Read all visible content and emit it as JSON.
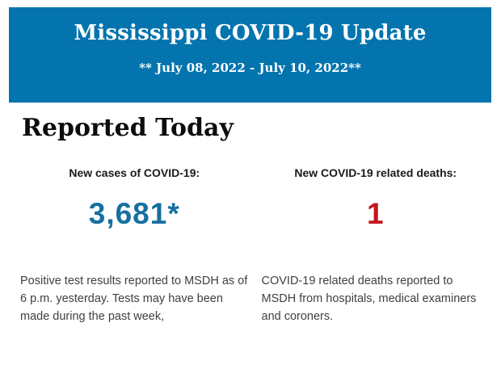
{
  "banner": {
    "title": "Mississippi COVID-19 Update",
    "subtitle": "** July 08, 2022 - July 10, 2022**",
    "background_color": "#0374AE",
    "text_color": "#FFFFFF"
  },
  "report": {
    "heading": "Reported Today"
  },
  "stats": {
    "cases": {
      "label": "New cases of COVID-19:",
      "value": "3,681*",
      "value_color": "#14709F",
      "description": "Positive test results reported to MSDH as of 6 p.m. yesterday. Tests may have been made during the past week,"
    },
    "deaths": {
      "label": "New COVID-19 related deaths:",
      "value": "1",
      "value_color": "#C4161C",
      "description": "COVID-19 related deaths reported to MSDH from hospitals, medical examiners and coroners."
    }
  }
}
